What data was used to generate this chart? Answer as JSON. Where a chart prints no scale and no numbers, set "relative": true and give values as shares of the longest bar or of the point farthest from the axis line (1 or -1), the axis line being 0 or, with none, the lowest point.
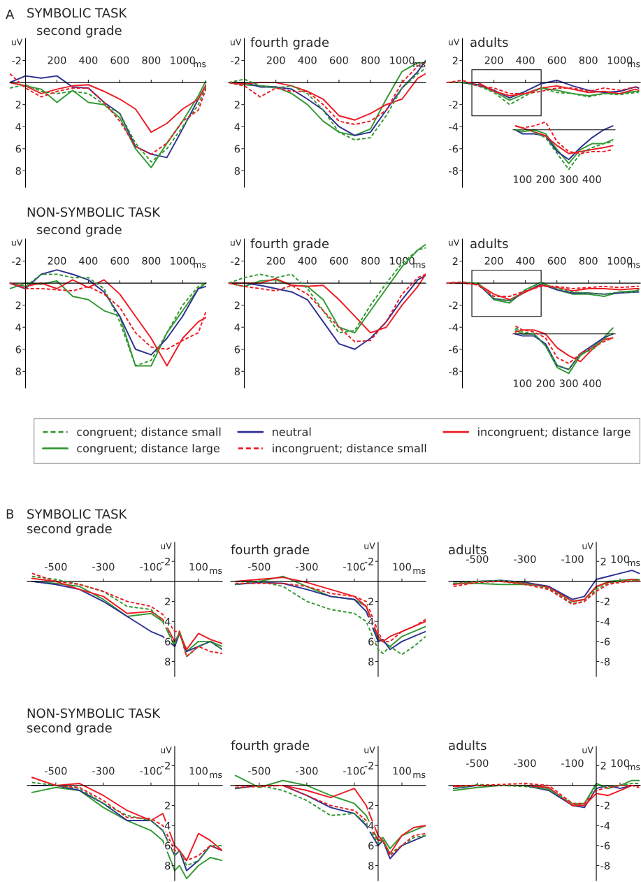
{
  "chart_data": [
    {
      "type": "line",
      "title": "SYMBOLIC TASK",
      "subtitle": "second grade",
      "annotations": [
        "A"
      ],
      "xlabel": "ms",
      "ylabel": "uV",
      "x": [
        -100,
        0,
        100,
        200,
        300,
        400,
        500,
        600,
        700,
        800,
        900,
        1000,
        1100,
        1150
      ],
      "xlim": [
        -100,
        1150
      ],
      "ylim": [
        9.5,
        -4
      ],
      "xticks": [
        200,
        400,
        600,
        800,
        1000
      ],
      "yticks": [
        -2,
        2,
        4,
        6,
        8
      ],
      "series": [
        {
          "color": "#339933",
          "line_style": "dashed",
          "values": [
            0.5,
            0.2,
            0.8,
            1.0,
            0.8,
            1.0,
            2.0,
            2.8,
            5.5,
            7.2,
            6.0,
            4.0,
            2.0,
            0.3
          ]
        },
        {
          "color": "#339933",
          "line_style": "solid",
          "values": [
            0,
            0.3,
            0.6,
            1.8,
            0.7,
            1.8,
            2.0,
            3.2,
            6.0,
            7.7,
            5.5,
            3.5,
            1.2,
            -0.2
          ]
        },
        {
          "color": "#2e3192",
          "line_style": "solid",
          "values": [
            0,
            -0.6,
            -0.4,
            -0.6,
            0.4,
            0.5,
            1.8,
            2.8,
            5.8,
            6.5,
            6.8,
            4.2,
            1.5,
            0.2
          ]
        },
        {
          "color": "#ed1c24",
          "line_style": "dashed",
          "values": [
            -0.8,
            0.5,
            1.3,
            0.8,
            0.5,
            0.5,
            1.8,
            3.5,
            5.8,
            6.5,
            5.5,
            3.5,
            2.5,
            0.5
          ]
        },
        {
          "color": "#ed1c24",
          "line_style": "solid",
          "values": [
            0,
            0.3,
            1.0,
            0.6,
            0.3,
            0.2,
            0.8,
            1.5,
            2.4,
            4.5,
            3.7,
            2.4,
            1.5,
            0.2
          ]
        }
      ]
    },
    {
      "type": "line",
      "title": "fourth grade",
      "xlabel": "ms",
      "ylabel": "uV",
      "x": [
        -100,
        0,
        100,
        200,
        300,
        400,
        500,
        600,
        700,
        800,
        900,
        1000,
        1100,
        1150
      ],
      "xlim": [
        -100,
        1150
      ],
      "ylim": [
        9.5,
        -4
      ],
      "xticks": [
        200,
        400,
        600,
        800,
        1000
      ],
      "yticks": [
        -2,
        2,
        4,
        6,
        8
      ],
      "series": [
        {
          "color": "#339933",
          "line_style": "dashed",
          "values": [
            0,
            -0.3,
            0.3,
            0.5,
            0.3,
            1.0,
            2.5,
            4.5,
            5.2,
            5.0,
            3.0,
            0.5,
            -0.8,
            -1.3
          ]
        },
        {
          "color": "#339933",
          "line_style": "solid",
          "values": [
            0,
            0.2,
            0.3,
            0.4,
            1.0,
            2.0,
            3.5,
            4.5,
            4.8,
            4.2,
            1.5,
            -1.0,
            -1.8,
            -1.8
          ]
        },
        {
          "color": "#2e3192",
          "line_style": "solid",
          "values": [
            0,
            0,
            0.4,
            0.4,
            0.6,
            1.5,
            2.5,
            4.0,
            4.8,
            4.5,
            2.5,
            0.5,
            -1.0,
            -2.0
          ]
        },
        {
          "color": "#ed1c24",
          "line_style": "dashed",
          "values": [
            0,
            0.3,
            1.3,
            0.5,
            0.8,
            0.8,
            2.0,
            3.5,
            3.8,
            3.5,
            2.5,
            0,
            -1.5,
            -1.8
          ]
        },
        {
          "color": "#ed1c24",
          "line_style": "solid",
          "values": [
            0,
            0.1,
            0,
            0,
            0.3,
            0.8,
            1.5,
            3.0,
            3.4,
            2.8,
            2.0,
            1.5,
            -0.4,
            -0.8
          ]
        }
      ]
    },
    {
      "type": "line",
      "title": "adults",
      "xlabel": "ms",
      "ylabel": "uV",
      "x": [
        -100,
        0,
        100,
        200,
        300,
        400,
        500,
        600,
        700,
        800,
        900,
        1000,
        1100,
        1120
      ],
      "xlim": [
        -100,
        1130
      ],
      "ylim": [
        -9.5,
        4
      ],
      "xticks": [
        200,
        400,
        600,
        800,
        1000
      ],
      "yticks": [
        2,
        -2,
        -4,
        -6,
        -8
      ],
      "series": [
        {
          "color": "#339933",
          "line_style": "dashed",
          "values": [
            0,
            0,
            -0.3,
            -0.9,
            -2.0,
            -1.2,
            -0.5,
            -0.9,
            -1.0,
            -1.3,
            -1.0,
            -1.1,
            -0.9,
            -0.9
          ]
        },
        {
          "color": "#339933",
          "line_style": "solid",
          "values": [
            0,
            0,
            -0.2,
            -0.8,
            -1.6,
            -1.0,
            -0.5,
            -0.7,
            -1.0,
            -1.2,
            -1.0,
            -1.0,
            -0.8,
            -0.8
          ]
        },
        {
          "color": "#2e3192",
          "line_style": "solid",
          "values": [
            0,
            0,
            -0.2,
            -0.7,
            -1.4,
            -0.8,
            -0.1,
            0.2,
            -0.3,
            -0.7,
            -0.9,
            -0.8,
            -0.4,
            -0.5
          ]
        },
        {
          "color": "#ed1c24",
          "line_style": "dashed",
          "values": [
            0,
            0.2,
            -0.3,
            -0.5,
            -1.0,
            -1.0,
            -0.8,
            -0.5,
            -0.5,
            -0.8,
            -0.5,
            -0.7,
            -0.4,
            -0.4
          ]
        },
        {
          "color": "#ed1c24",
          "line_style": "solid",
          "values": [
            0,
            0,
            0,
            -0.8,
            -1.2,
            -1.0,
            -0.5,
            -0.3,
            -0.6,
            -0.9,
            -0.8,
            -1.0,
            -0.6,
            -0.7
          ]
        }
      ]
    },
    {
      "type": "line",
      "relative": true,
      "tick_labels": "x",
      "x": [
        70,
        100,
        150,
        200,
        250,
        300,
        350,
        400,
        450,
        490
      ],
      "xlim": [
        60,
        500
      ],
      "xticks": [
        100,
        200,
        300,
        400
      ],
      "series": [
        {
          "color": "#339933",
          "line_style": "dashed",
          "values": [
            0,
            0,
            -0.05,
            -0.2,
            -0.6,
            -1.0,
            -0.6,
            -0.45,
            -0.35,
            -0.3
          ]
        },
        {
          "color": "#339933",
          "line_style": "solid",
          "values": [
            0,
            -0.05,
            0,
            -0.1,
            -0.5,
            -0.85,
            -0.5,
            -0.35,
            -0.35,
            -0.25
          ]
        },
        {
          "color": "#2e3192",
          "line_style": "solid",
          "values": [
            0,
            -0.1,
            -0.1,
            -0.15,
            -0.55,
            -0.75,
            -0.45,
            -0.2,
            0,
            0.1
          ]
        },
        {
          "color": "#ed1c24",
          "line_style": "dashed",
          "values": [
            0.1,
            0.05,
            0.1,
            0.2,
            -0.3,
            -0.55,
            -0.6,
            -0.55,
            -0.55,
            -0.5
          ]
        },
        {
          "color": "#ed1c24",
          "line_style": "solid",
          "values": [
            0.1,
            0.05,
            -0.05,
            -0.15,
            -0.4,
            -0.6,
            -0.55,
            -0.5,
            -0.45,
            -0.4
          ]
        }
      ]
    },
    {
      "type": "line",
      "title": "NON-SYMBOLIC TASK",
      "subtitle": "second grade",
      "xlabel": "ms",
      "ylabel": "uV",
      "legend": "bottom",
      "x": [
        -100,
        0,
        100,
        200,
        300,
        400,
        500,
        600,
        700,
        800,
        900,
        1000,
        1100,
        1150
      ],
      "xlim": [
        -100,
        1150
      ],
      "ylim": [
        9.5,
        -4
      ],
      "xticks": [
        200,
        400,
        600,
        800,
        1000
      ],
      "yticks": [
        -2,
        2,
        4,
        6,
        8
      ],
      "series": [
        {
          "name": "congruent; distance small",
          "color": "#339933",
          "line_style": "dashed",
          "values": [
            0,
            0.3,
            -0.8,
            -0.8,
            -0.5,
            -0.5,
            0.5,
            3.5,
            7.5,
            7.0,
            4.5,
            2.0,
            0.3,
            0
          ]
        },
        {
          "name": "congruent; distance large",
          "color": "#339933",
          "line_style": "solid",
          "values": [
            0.5,
            0,
            0.1,
            -0.2,
            1.2,
            1.5,
            2.5,
            3.0,
            7.5,
            7.5,
            4.5,
            2.5,
            0.5,
            0
          ]
        },
        {
          "name": "neutral",
          "color": "#2e3192",
          "line_style": "solid",
          "values": [
            0,
            0.5,
            -0.8,
            -1.2,
            -0.8,
            -0.3,
            0.8,
            3.0,
            6.0,
            6.5,
            5.0,
            3.0,
            0.5,
            0.3
          ]
        },
        {
          "name": "incongruent; distance small",
          "color": "#ed1c24",
          "line_style": "dashed",
          "values": [
            0,
            0.5,
            0.5,
            0.6,
            0.7,
            0.3,
            1.0,
            2.2,
            4.5,
            5.8,
            6.0,
            5.2,
            4.5,
            2.5
          ]
        },
        {
          "name": "incongruent; distance large",
          "color": "#ed1c24",
          "line_style": "solid",
          "values": [
            0,
            0.3,
            0,
            0.5,
            -0.3,
            0.4,
            -0.3,
            1.0,
            3.0,
            5.0,
            7.5,
            5.0,
            3.5,
            3.1
          ]
        }
      ]
    },
    {
      "type": "line",
      "title": "fourth grade",
      "xlabel": "ms",
      "ylabel": "uV",
      "x": [
        -100,
        0,
        100,
        200,
        300,
        400,
        500,
        600,
        700,
        800,
        900,
        1000,
        1100,
        1150
      ],
      "xlim": [
        -100,
        1150
      ],
      "ylim": [
        9.5,
        -4
      ],
      "xticks": [
        200,
        400,
        600,
        800,
        1000
      ],
      "yticks": [
        -2,
        2,
        4,
        6,
        8
      ],
      "series": [
        {
          "color": "#339933",
          "line_style": "dashed",
          "values": [
            0,
            -0.5,
            -0.8,
            -0.5,
            -0.8,
            0.5,
            2.5,
            4.5,
            4.3,
            2.0,
            0,
            -1.8,
            -3.0,
            -3.2
          ]
        },
        {
          "color": "#339933",
          "line_style": "solid",
          "values": [
            0,
            0.3,
            -0.2,
            -0.3,
            0.2,
            0.3,
            1.5,
            4.0,
            4.5,
            2.5,
            0.5,
            -1.5,
            -3.0,
            -3.5
          ]
        },
        {
          "color": "#2e3192",
          "line_style": "solid",
          "values": [
            0,
            0,
            0.2,
            0.5,
            0.8,
            1.5,
            3.5,
            5.5,
            6.0,
            5.0,
            3.5,
            1.5,
            -0.3,
            -0.7
          ]
        },
        {
          "color": "#ed1c24",
          "line_style": "dashed",
          "values": [
            0,
            0.3,
            0.5,
            0.7,
            0.2,
            1.0,
            2.5,
            4.0,
            5.3,
            5.2,
            3.5,
            1.0,
            -0.5,
            -0.8
          ]
        },
        {
          "color": "#ed1c24",
          "line_style": "solid",
          "values": [
            0,
            0,
            0,
            -0.4,
            0.2,
            0.3,
            0.2,
            1.5,
            3.0,
            4.5,
            4.0,
            2.0,
            0.3,
            -0.8
          ]
        }
      ]
    },
    {
      "type": "line",
      "title": "adults",
      "xlabel": "ms",
      "ylabel": "uV",
      "x": [
        -100,
        0,
        100,
        200,
        300,
        400,
        500,
        600,
        700,
        800,
        900,
        1000,
        1100,
        1120
      ],
      "xlim": [
        -100,
        1130
      ],
      "ylim": [
        -9.5,
        4
      ],
      "xticks": [
        200,
        400,
        600,
        800,
        1000
      ],
      "yticks": [
        2,
        -2,
        -4,
        -6,
        -8
      ],
      "series": [
        {
          "color": "#339933",
          "line_style": "dashed",
          "values": [
            0,
            0.1,
            0,
            -1.4,
            -1.6,
            -0.6,
            0,
            -0.5,
            -0.8,
            -0.9,
            -1.0,
            -0.8,
            -0.8,
            -0.6
          ]
        },
        {
          "color": "#339933",
          "line_style": "solid",
          "values": [
            0,
            0,
            0,
            -1.5,
            -1.8,
            -0.6,
            0.1,
            -0.6,
            -1.0,
            -1.0,
            -1.2,
            -0.8,
            -0.7,
            -0.6
          ]
        },
        {
          "color": "#2e3192",
          "line_style": "solid",
          "values": [
            0,
            0,
            -0.1,
            -1.4,
            -1.6,
            -0.8,
            -0.1,
            -0.6,
            -0.9,
            -0.9,
            -1.0,
            -0.9,
            -0.8,
            -0.8
          ]
        },
        {
          "color": "#ed1c24",
          "line_style": "dashed",
          "values": [
            0,
            0.1,
            -0.2,
            -1.2,
            -1.2,
            -0.7,
            -0.3,
            -0.3,
            -0.5,
            -0.4,
            -0.3,
            -0.4,
            -0.3,
            -0.3
          ]
        },
        {
          "color": "#ed1c24",
          "line_style": "solid",
          "values": [
            0,
            0,
            -0.1,
            -1.0,
            -1.5,
            -0.8,
            -0.2,
            -0.4,
            -0.7,
            -0.5,
            -0.5,
            -0.6,
            -0.5,
            -0.5
          ]
        }
      ]
    },
    {
      "type": "line",
      "relative": true,
      "tick_labels": "x",
      "x": [
        70,
        100,
        150,
        200,
        250,
        300,
        350,
        400,
        450,
        490
      ],
      "xlim": [
        60,
        500
      ],
      "xticks": [
        100,
        200,
        300,
        400
      ],
      "series": [
        {
          "color": "#339933",
          "line_style": "dashed",
          "values": [
            0.15,
            0.05,
            0,
            -0.3,
            -0.8,
            -0.9,
            -0.5,
            -0.4,
            -0.15,
            0.05
          ]
        },
        {
          "color": "#339933",
          "line_style": "solid",
          "values": [
            0.1,
            0,
            0,
            -0.3,
            -0.85,
            -1.0,
            -0.55,
            -0.35,
            -0.1,
            0.15
          ]
        },
        {
          "color": "#2e3192",
          "line_style": "solid",
          "values": [
            0,
            -0.05,
            -0.05,
            -0.25,
            -0.8,
            -0.9,
            -0.5,
            -0.3,
            -0.1,
            0
          ]
        },
        {
          "color": "#ed1c24",
          "line_style": "dashed",
          "values": [
            0.2,
            0.1,
            0.05,
            -0.1,
            -0.6,
            -0.75,
            -0.5,
            -0.35,
            -0.2,
            -0.1
          ]
        },
        {
          "color": "#ed1c24",
          "line_style": "solid",
          "values": [
            0.05,
            0.1,
            0.1,
            0,
            -0.35,
            -0.55,
            -0.7,
            -0.4,
            -0.15,
            -0.1
          ]
        }
      ]
    },
    {
      "type": "line",
      "title": "SYMBOLIC TASK",
      "subtitle": "second grade",
      "annotations": [
        "B"
      ],
      "xlabel": "ms",
      "ylabel": "uV",
      "x": [
        -600,
        -500,
        -400,
        -300,
        -200,
        -100,
        -50,
        0,
        20,
        50,
        100,
        150,
        200
      ],
      "xlim": [
        -620,
        200
      ],
      "ylim": [
        9.5,
        -3.9
      ],
      "xticks": [
        -500,
        -300,
        -100,
        100
      ],
      "yticks": [
        -2,
        2,
        4,
        6,
        8
      ],
      "series": [
        {
          "color": "#339933",
          "line_style": "dashed",
          "values": [
            -0.5,
            -0.2,
            0.3,
            1.0,
            2.5,
            2.8,
            4.0,
            6.3,
            5.0,
            7.5,
            6.5,
            6.0,
            6.8
          ]
        },
        {
          "color": "#339933",
          "line_style": "solid",
          "values": [
            0,
            0.2,
            0.5,
            1.8,
            3.5,
            3.2,
            4.0,
            6.5,
            5.0,
            7.0,
            6.0,
            6.0,
            6.5
          ]
        },
        {
          "color": "#2e3192",
          "line_style": "solid",
          "values": [
            0,
            0.3,
            0.8,
            2.0,
            3.5,
            5.0,
            5.5,
            6.5,
            5.2,
            7.0,
            6.5,
            6.0,
            6.8
          ]
        },
        {
          "color": "#ed1c24",
          "line_style": "dashed",
          "values": [
            -0.8,
            0,
            0.3,
            1.0,
            2.0,
            2.5,
            3.3,
            5.0,
            5.0,
            7.5,
            6.5,
            7.0,
            7.2
          ]
        },
        {
          "color": "#ed1c24",
          "line_style": "solid",
          "values": [
            -0.3,
            0,
            0.8,
            1.5,
            3.2,
            3.0,
            3.8,
            6.0,
            5.2,
            6.8,
            5.2,
            5.8,
            6.2
          ]
        }
      ]
    },
    {
      "type": "line",
      "title": "fourth grade",
      "xlabel": "ms",
      "ylabel": "uV",
      "x": [
        -600,
        -500,
        -400,
        -300,
        -200,
        -100,
        -50,
        0,
        20,
        50,
        100,
        150,
        200
      ],
      "xlim": [
        -620,
        200
      ],
      "ylim": [
        9.5,
        -3.9
      ],
      "xticks": [
        -500,
        -300,
        -100,
        100
      ],
      "yticks": [
        -2,
        2,
        4,
        6,
        8
      ],
      "series": [
        {
          "color": "#339933",
          "line_style": "dashed",
          "values": [
            0.3,
            0,
            0.5,
            2.0,
            2.8,
            3.2,
            4.0,
            6.8,
            7.2,
            6.5,
            7.3,
            6.5,
            5.5
          ]
        },
        {
          "color": "#339933",
          "line_style": "solid",
          "values": [
            0,
            0,
            -0.5,
            0.5,
            1.5,
            1.8,
            2.5,
            5.8,
            6.0,
            6.5,
            5.5,
            5.0,
            4.5
          ]
        },
        {
          "color": "#2e3192",
          "line_style": "solid",
          "values": [
            0.3,
            0.1,
            0.2,
            0.8,
            1.5,
            1.8,
            3.0,
            6.0,
            5.8,
            6.8,
            6.0,
            5.5,
            5.0
          ]
        },
        {
          "color": "#ed1c24",
          "line_style": "dashed",
          "values": [
            0.2,
            0.2,
            0.2,
            0.5,
            1.2,
            1.5,
            2.0,
            5.0,
            6.0,
            6.0,
            5.0,
            4.5,
            3.8
          ]
        },
        {
          "color": "#ed1c24",
          "line_style": "solid",
          "values": [
            0,
            -0.2,
            -0.4,
            0.1,
            0.8,
            1.5,
            2.5,
            5.5,
            6.0,
            5.5,
            5.0,
            4.5,
            4.0
          ]
        }
      ]
    },
    {
      "type": "line",
      "title": "adults",
      "xlabel": "ms",
      "ylabel": "uV",
      "x": [
        -600,
        -500,
        -400,
        -300,
        -200,
        -100,
        -50,
        0,
        50,
        100,
        150,
        180
      ],
      "xlim": [
        -620,
        185
      ],
      "ylim": [
        -9.5,
        3.9
      ],
      "xticks": [
        -500,
        -300,
        -100,
        100
      ],
      "yticks": [
        2,
        -2,
        -4,
        -6,
        -8
      ],
      "series": [
        {
          "color": "#339933",
          "line_style": "dashed",
          "values": [
            -0.2,
            0,
            0.1,
            -0.2,
            -0.7,
            -2.2,
            -2.0,
            -0.8,
            -0.2,
            0,
            0.1,
            0.1
          ]
        },
        {
          "color": "#339933",
          "line_style": "solid",
          "values": [
            -0.2,
            -0.2,
            -0.3,
            -0.3,
            -0.5,
            -2.0,
            -1.8,
            -0.6,
            0,
            0.1,
            0.2,
            0.2
          ]
        },
        {
          "color": "#2e3192",
          "line_style": "solid",
          "values": [
            0,
            0,
            0.1,
            -0.1,
            -0.5,
            -1.8,
            -1.5,
            0.2,
            0.5,
            0.8,
            1.1,
            0.8
          ]
        },
        {
          "color": "#ed1c24",
          "line_style": "dashed",
          "values": [
            -0.5,
            -0.1,
            0,
            -0.3,
            -0.8,
            -2.3,
            -2.0,
            -1.0,
            -0.3,
            -0.1,
            0,
            0
          ]
        },
        {
          "color": "#ed1c24",
          "line_style": "solid",
          "values": [
            -0.3,
            0,
            0,
            -0.2,
            -0.6,
            -2.0,
            -1.8,
            -0.5,
            -0.1,
            0,
            0.2,
            0.1
          ]
        }
      ]
    },
    {
      "type": "line",
      "title": "NON-SYMBOLIC TASK",
      "subtitle": "second grade",
      "xlabel": "ms",
      "ylabel": "uV",
      "x": [
        -600,
        -500,
        -400,
        -300,
        -200,
        -100,
        -50,
        0,
        20,
        50,
        100,
        150,
        200
      ],
      "xlim": [
        -620,
        200
      ],
      "ylim": [
        9.5,
        -3.9
      ],
      "xticks": [
        -500,
        -300,
        -100,
        100
      ],
      "yticks": [
        -2,
        2,
        4,
        6,
        8
      ],
      "series": [
        {
          "color": "#339933",
          "line_style": "dashed",
          "values": [
            -0.3,
            0,
            0.3,
            1.8,
            3.0,
            3.5,
            4.5,
            7.0,
            6.5,
            8.0,
            7.5,
            6.0,
            6.0
          ]
        },
        {
          "color": "#339933",
          "line_style": "solid",
          "values": [
            0.7,
            0.2,
            0.5,
            2.2,
            3.5,
            4.5,
            5.5,
            8.5,
            8.0,
            9.3,
            8.0,
            7.2,
            7.5
          ]
        },
        {
          "color": "#2e3192",
          "line_style": "solid",
          "values": [
            0,
            0,
            0.5,
            1.8,
            3.5,
            3.5,
            4.5,
            7.0,
            6.5,
            8.5,
            7.5,
            6.0,
            6.5
          ]
        },
        {
          "color": "#ed1c24",
          "line_style": "dashed",
          "values": [
            -0.8,
            0,
            0.2,
            1.5,
            3.2,
            3.3,
            4.0,
            6.5,
            6.5,
            7.5,
            7.0,
            6.0,
            6.5
          ]
        },
        {
          "color": "#ed1c24",
          "line_style": "solid",
          "values": [
            -0.8,
            0,
            -0.2,
            1.0,
            2.5,
            3.5,
            2.8,
            6.0,
            6.5,
            7.5,
            4.8,
            5.5,
            6.5
          ]
        }
      ]
    },
    {
      "type": "line",
      "title": "fourth grade",
      "xlabel": "ms",
      "ylabel": "uV",
      "x": [
        -600,
        -500,
        -400,
        -300,
        -200,
        -100,
        -50,
        0,
        20,
        50,
        100,
        150,
        200
      ],
      "xlim": [
        -620,
        200
      ],
      "ylim": [
        9.5,
        -3.9
      ],
      "xticks": [
        -500,
        -300,
        -100,
        100
      ],
      "yticks": [
        -2,
        2,
        4,
        6,
        8
      ],
      "series": [
        {
          "color": "#339933",
          "line_style": "dashed",
          "values": [
            0.3,
            0,
            0.5,
            1.5,
            3.0,
            2.8,
            3.8,
            5.8,
            5.5,
            6.8,
            6.0,
            5.2,
            5.0
          ]
        },
        {
          "color": "#339933",
          "line_style": "solid",
          "values": [
            -1.0,
            0.2,
            -0.5,
            0,
            1.0,
            1.8,
            3.0,
            5.5,
            5.2,
            6.3,
            5.0,
            4.5,
            4.0
          ]
        },
        {
          "color": "#2e3192",
          "line_style": "solid",
          "values": [
            0.3,
            0,
            0,
            1.0,
            2.2,
            2.8,
            4.0,
            6.0,
            5.5,
            7.3,
            6.0,
            5.5,
            5.0
          ]
        },
        {
          "color": "#ed1c24",
          "line_style": "dashed",
          "values": [
            0.2,
            0.1,
            0,
            1.0,
            2.0,
            2.5,
            3.5,
            5.5,
            5.5,
            7.0,
            6.0,
            5.0,
            4.8
          ]
        },
        {
          "color": "#ed1c24",
          "line_style": "solid",
          "values": [
            0,
            0,
            0,
            0.5,
            1.2,
            0.3,
            2.0,
            5.0,
            5.5,
            6.8,
            5.0,
            4.2,
            4.0
          ]
        }
      ]
    },
    {
      "type": "line",
      "title": "adults",
      "xlabel": "ms",
      "ylabel": "uV",
      "x": [
        -600,
        -500,
        -400,
        -300,
        -200,
        -100,
        -50,
        0,
        50,
        100,
        150,
        180
      ],
      "xlim": [
        -620,
        185
      ],
      "ylim": [
        -9.5,
        3.9
      ],
      "xticks": [
        -500,
        -300,
        -100,
        100
      ],
      "yticks": [
        2,
        -2,
        -4,
        -6,
        -8
      ],
      "series": [
        {
          "color": "#339933",
          "line_style": "dashed",
          "values": [
            -0.3,
            0.1,
            0,
            -0.1,
            -0.4,
            -1.8,
            -1.8,
            0,
            -0.1,
            0,
            0.2,
            0.2
          ]
        },
        {
          "color": "#339933",
          "line_style": "solid",
          "values": [
            -0.5,
            -0.2,
            0,
            0,
            -0.3,
            -2.0,
            -1.8,
            0.2,
            -0.3,
            0,
            0.5,
            0.5
          ]
        },
        {
          "color": "#2e3192",
          "line_style": "solid",
          "values": [
            -0.3,
            0,
            0,
            0,
            -0.5,
            -2.0,
            -2.2,
            -0.3,
            0,
            -0.3,
            0,
            0
          ]
        },
        {
          "color": "#ed1c24",
          "line_style": "dashed",
          "values": [
            0,
            0,
            0.1,
            0.2,
            0,
            -1.8,
            -1.8,
            -0.5,
            -0.2,
            0,
            0,
            -0.2
          ]
        },
        {
          "color": "#ed1c24",
          "line_style": "solid",
          "values": [
            -0.1,
            0,
            0,
            0,
            -0.2,
            -2.0,
            -2.0,
            -0.8,
            -1.0,
            -0.5,
            0,
            0
          ]
        }
      ]
    }
  ]
}
